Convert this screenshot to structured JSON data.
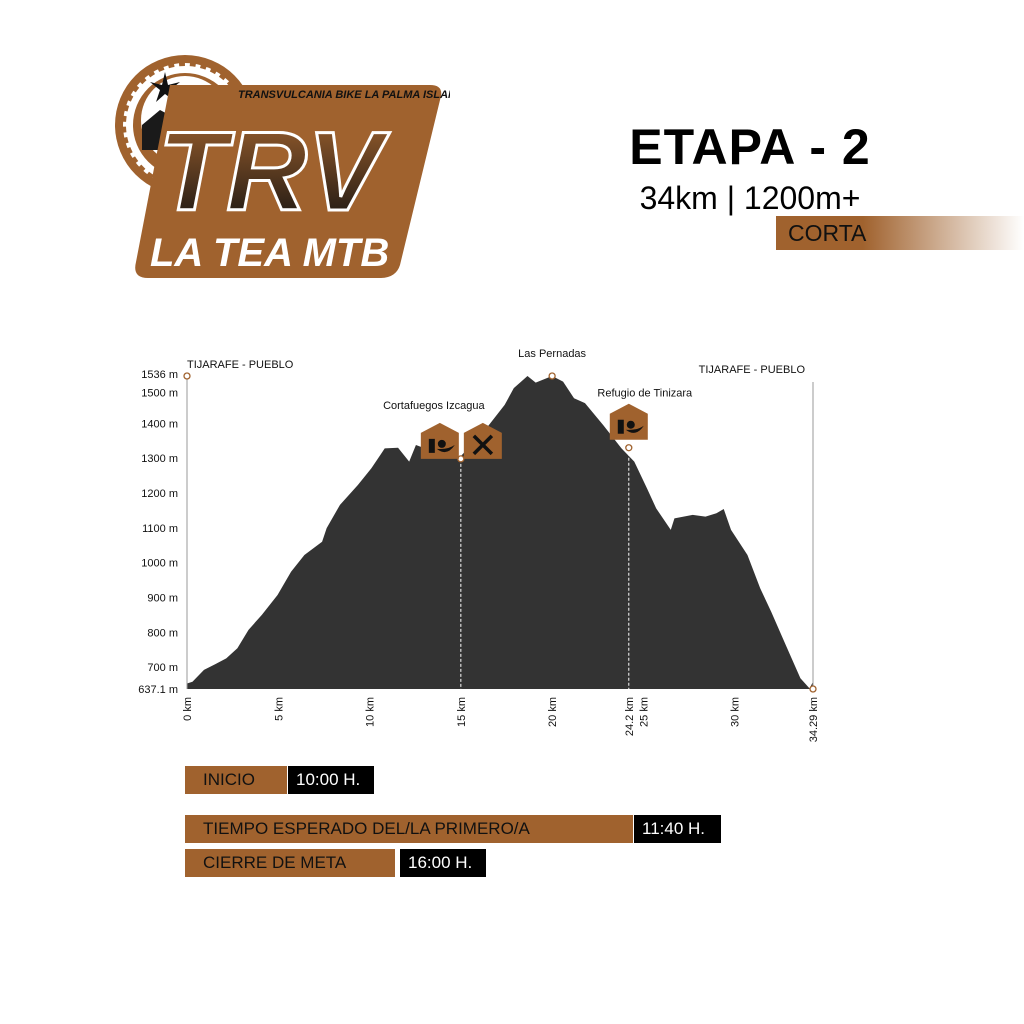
{
  "logo": {
    "tagline": "TRANSVULCANIA BIKE LA PALMA ISLAND",
    "wordmark": "TRV",
    "subtitle": "LA TEA MTB",
    "brand_color": "#a0622e"
  },
  "header": {
    "title": "ETAPA - 2",
    "subtitle": "34km | 1200m+",
    "category": "CORTA"
  },
  "chart_data": {
    "type": "area",
    "xlabel": "",
    "ylabel": "",
    "xlim": [
      0,
      34.29
    ],
    "ylim": [
      637.1,
      1536
    ],
    "grid": false,
    "fill_color": "#333333",
    "marker_color": "#a0622e",
    "x_ticks": [
      "0 km",
      "5 km",
      "10 km",
      "15 km",
      "20 km",
      "24.2 km",
      "25 km",
      "30 km",
      "34.29 km"
    ],
    "x_tick_values": [
      0,
      5,
      10,
      15,
      20,
      24.2,
      25,
      30,
      34.29
    ],
    "y_ticks": [
      "637.1 m",
      "700 m",
      "800 m",
      "900 m",
      "1000 m",
      "1100 m",
      "1200 m",
      "1300 m",
      "1400 m",
      "1500 m",
      "1536 m"
    ],
    "y_tick_values": [
      637.1,
      700,
      800,
      900,
      1000,
      1100,
      1200,
      1300,
      1400,
      1500,
      1536
    ],
    "x": [
      0,
      0.3,
      0.93,
      1.54,
      2.15,
      2.76,
      3.37,
      4.1,
      4.96,
      5.7,
      6.43,
      7.4,
      7.65,
      8.38,
      9.36,
      10.1,
      10.83,
      11.56,
      12.17,
      12.54,
      13.5,
      14.0,
      14.9,
      16.4,
      17.4,
      17.9,
      18.65,
      19.1,
      20.0,
      20.6,
      21.2,
      21.8,
      22.8,
      23.8,
      24.5,
      25.2,
      25.7,
      26.5,
      26.7,
      27.7,
      28.4,
      29.0,
      29.4,
      29.8,
      30.7,
      31.4,
      32.0,
      32.8,
      33.6,
      34.1,
      34.29
    ],
    "y": [
      653,
      658,
      692,
      708,
      725,
      754,
      807,
      850,
      907,
      974,
      1022,
      1060,
      1099,
      1166,
      1223,
      1271,
      1328,
      1330,
      1290,
      1338,
      1319,
      1314,
      1300,
      1386,
      1453,
      1501,
      1536,
      1517,
      1536,
      1520,
      1472,
      1458,
      1395,
      1328,
      1290,
      1213,
      1156,
      1094,
      1127,
      1137,
      1132,
      1142,
      1154,
      1094,
      1022,
      926,
      859,
      763,
      668,
      639,
      658
    ],
    "start_label": "TIJARAFE - PUEBLO",
    "end_label": "TIJARAFE - PUEBLO",
    "waypoints": [
      {
        "name": "Cortafuegos Izcagua",
        "km": 15,
        "elev": 1298,
        "icons": [
          "food-drink-icon",
          "tools-icon"
        ]
      },
      {
        "name": "Las Pernadas",
        "km": 20,
        "elev": 1536,
        "icons": []
      },
      {
        "name": "Refugio de Tinizara",
        "km": 24.2,
        "elev": 1330,
        "icons": [
          "food-drink-icon"
        ]
      }
    ]
  },
  "schedule": {
    "start": {
      "label": "INICIO",
      "time": "10:00 H."
    },
    "expected": {
      "label": "TIEMPO ESPERADO DEL/LA PRIMERO/A",
      "time": "11:40 H."
    },
    "finish_close": {
      "label": "CIERRE DE META",
      "time": "16:00 H."
    }
  }
}
